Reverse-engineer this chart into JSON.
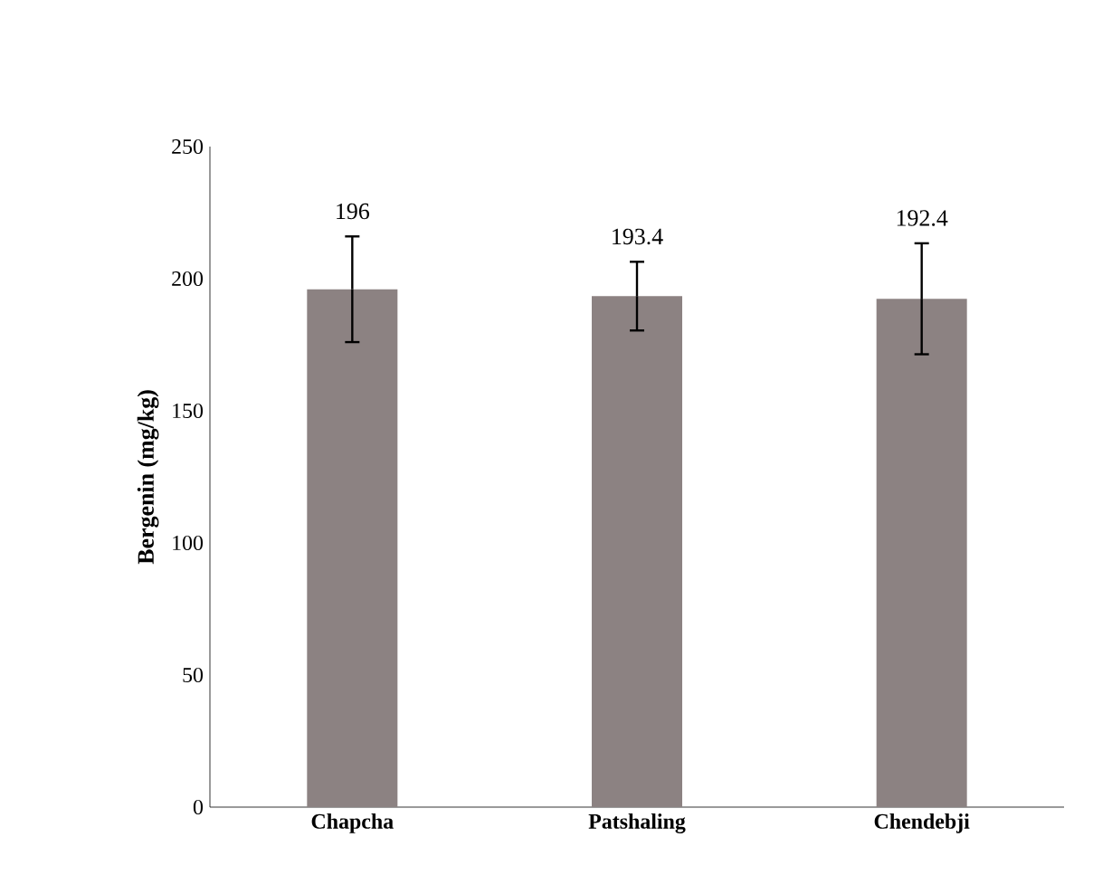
{
  "chart_data": {
    "type": "bar",
    "ylabel": "Bergenin (mg/kg)",
    "categories": [
      "Chapcha",
      "Patshaling",
      "Chendebji"
    ],
    "values": [
      196,
      193.4,
      192.4
    ],
    "errors": [
      20,
      13,
      21
    ],
    "color": "#8c8282",
    "value_labels": [
      "196",
      "193.4",
      "192.4"
    ],
    "ylim": [
      0,
      250
    ],
    "yticks": [
      0,
      50,
      100,
      150,
      200,
      250
    ]
  }
}
